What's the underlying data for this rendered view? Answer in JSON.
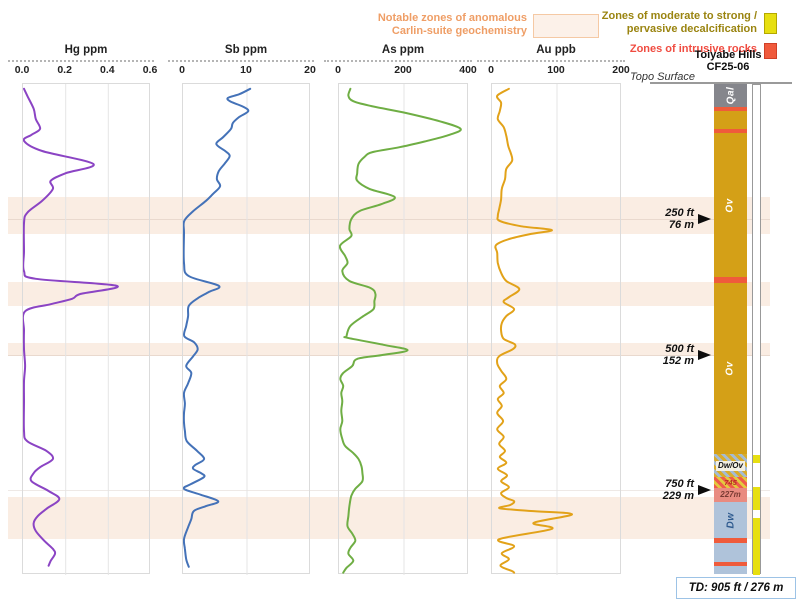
{
  "legend": {
    "anomalous": {
      "line1": "Notable zones of anomalous",
      "line2": "Carlin-suite geochemistry",
      "text_color": "#EF9E66",
      "swatch_fill": "#FCF1E9"
    },
    "decal": {
      "line1": "Zones of moderate to strong /",
      "line2": "pervasive decalcification",
      "text_color": "#9A8410",
      "swatch_fill": "#E7DF10"
    },
    "intrusive": {
      "label": "Zones of intrusive rocks",
      "text_color": "#F04C41",
      "swatch_fill": "#F05A3C"
    }
  },
  "drillhole": {
    "title_line1": "Toiyabe Hills",
    "title_line2": "CF25-06",
    "topo_label": "Topo Surface",
    "td_label": "TD: 905 ft / 276 m",
    "total_depth_ft": 905,
    "depth_markers": [
      {
        "ft_label": "250 ft",
        "m_label": "76 m",
        "depth_ft": 250
      },
      {
        "ft_label": "500 ft",
        "m_label": "152 m",
        "depth_ft": 500
      },
      {
        "ft_label": "750 ft",
        "m_label": "229 m",
        "depth_ft": 750
      }
    ],
    "column_layers": [
      {
        "from_ft": 0,
        "to_ft": 42,
        "color": "#85868C",
        "unit": "Qal",
        "label": "Qal",
        "label_class": "rot-light"
      },
      {
        "from_ft": 42,
        "to_ft": 50,
        "color": "#EF5B3B",
        "unit": "intrusive"
      },
      {
        "from_ft": 50,
        "to_ft": 83,
        "color": "#D4A017",
        "unit": "Ov"
      },
      {
        "from_ft": 83,
        "to_ft": 91,
        "color": "#EF5B3B",
        "unit": "intrusive"
      },
      {
        "from_ft": 91,
        "to_ft": 357,
        "color": "#D4A017",
        "unit": "Ov",
        "label": "Ov",
        "label_class": "rot-light"
      },
      {
        "from_ft": 357,
        "to_ft": 368,
        "color": "#EF5B3B",
        "unit": "intrusive"
      },
      {
        "from_ft": 368,
        "to_ft": 684,
        "color": "#D4A017",
        "unit": "Ov",
        "label": "Ov",
        "label_class": "rot-light"
      },
      {
        "from_ft": 684,
        "to_ft": 726,
        "pattern": "hatch-gold-blue",
        "unit": "Dw/Ov",
        "label": "Dw/Ov",
        "label_class": "flat-dark"
      },
      {
        "from_ft": 726,
        "to_ft": 746,
        "pattern": "hatch-red-gold",
        "unit": "intrusive",
        "label": "745",
        "label_class": "flat-red"
      },
      {
        "from_ft": 746,
        "to_ft": 772,
        "color": "#E98B80",
        "unit": "intrusive",
        "label": "227m",
        "label_class": "flat-maroon"
      },
      {
        "from_ft": 772,
        "to_ft": 839,
        "color": "#AFC3DA",
        "unit": "Dw",
        "label": "Dw",
        "label_class": "rot-blue"
      },
      {
        "from_ft": 839,
        "to_ft": 848,
        "color": "#EF5B3B",
        "unit": "intrusive"
      },
      {
        "from_ft": 848,
        "to_ft": 883,
        "color": "#AFC3DA",
        "unit": "Dw"
      },
      {
        "from_ft": 883,
        "to_ft": 890,
        "color": "#EF5B3B",
        "unit": "intrusive"
      },
      {
        "from_ft": 890,
        "to_ft": 905,
        "color": "#AFC3DA",
        "unit": "Dw"
      }
    ],
    "decal_zones_ft": [
      [
        684,
        698
      ],
      [
        743,
        785
      ],
      [
        800,
        905
      ]
    ],
    "track_yellow": "#E7DF10"
  },
  "anomalous_zones_ft": [
    [
      209,
      277
    ],
    [
      366,
      410
    ],
    [
      478,
      502
    ],
    [
      763,
      841
    ]
  ],
  "band_color": "#FAEDE3",
  "depth_gridlines_ft": [
    250,
    500,
    750
  ],
  "chart_data": [
    {
      "id": "hg",
      "type": "line",
      "title": "Hg ppm",
      "orientation": "depth-profile",
      "xlim": [
        0,
        0.6
      ],
      "depth_range_ft": [
        0,
        905
      ],
      "grid": true,
      "color": "#8B44C4",
      "x_ticks": [
        {
          "v": 0,
          "label": "0.0"
        },
        {
          "v": 0.2,
          "label": "0.2"
        },
        {
          "v": 0.4,
          "label": "0.4"
        },
        {
          "v": 0.6,
          "label": "0.6"
        }
      ],
      "points": [
        [
          7,
          0
        ],
        [
          20,
          0.02
        ],
        [
          44,
          0.05
        ],
        [
          63,
          0.06
        ],
        [
          81,
          0.08
        ],
        [
          92,
          0.04
        ],
        [
          103,
          0
        ],
        [
          122,
          0.09
        ],
        [
          146,
          0.33
        ],
        [
          163,
          0.2
        ],
        [
          177,
          0.13
        ],
        [
          192,
          0.14
        ],
        [
          214,
          0.09
        ],
        [
          236,
          0.02
        ],
        [
          255,
          0
        ],
        [
          307,
          0
        ],
        [
          344,
          0
        ],
        [
          358,
          0.06
        ],
        [
          371,
          0.44
        ],
        [
          386,
          0.27
        ],
        [
          395,
          0.23
        ],
        [
          405,
          0.13
        ],
        [
          418,
          0.01
        ],
        [
          454,
          0
        ],
        [
          488,
          0
        ],
        [
          519,
          0.01
        ],
        [
          547,
          0
        ],
        [
          584,
          0
        ],
        [
          639,
          0
        ],
        [
          658,
          0.02
        ],
        [
          676,
          0.11
        ],
        [
          691,
          0.14
        ],
        [
          706,
          0.08
        ],
        [
          717,
          0.05
        ],
        [
          732,
          0.04
        ],
        [
          750,
          0.12
        ],
        [
          765,
          0.17
        ],
        [
          783,
          0.11
        ],
        [
          796,
          0.07
        ],
        [
          809,
          0.05
        ],
        [
          824,
          0.06
        ],
        [
          842,
          0.1
        ],
        [
          857,
          0.14
        ],
        [
          866,
          0.15
        ],
        [
          879,
          0.13
        ],
        [
          888,
          0.12
        ]
      ]
    },
    {
      "id": "sb",
      "type": "line",
      "title": "Sb ppm",
      "orientation": "depth-profile",
      "xlim": [
        0,
        20
      ],
      "depth_range_ft": [
        0,
        905
      ],
      "grid": true,
      "color": "#4472B8",
      "x_ticks": [
        {
          "v": 0,
          "label": "0"
        },
        {
          "v": 10,
          "label": "10"
        },
        {
          "v": 20,
          "label": "20"
        }
      ],
      "points": [
        [
          7,
          10.5
        ],
        [
          17,
          8.8
        ],
        [
          24,
          7
        ],
        [
          31,
          7.5
        ],
        [
          39,
          9.2
        ],
        [
          48,
          10.2
        ],
        [
          59,
          8.8
        ],
        [
          70,
          7.8
        ],
        [
          81,
          7.5
        ],
        [
          96,
          6.3
        ],
        [
          109,
          5.2
        ],
        [
          122,
          6.6
        ],
        [
          131,
          7.3
        ],
        [
          144,
          6.6
        ],
        [
          159,
          5.6
        ],
        [
          174,
          5.3
        ],
        [
          187,
          5.8
        ],
        [
          201,
          4.7
        ],
        [
          214,
          3.6
        ],
        [
          233,
          1.6
        ],
        [
          251,
          0.2
        ],
        [
          273,
          0
        ],
        [
          329,
          0
        ],
        [
          353,
          0.9
        ],
        [
          371,
          5.6
        ],
        [
          382,
          4.1
        ],
        [
          394,
          2.3
        ],
        [
          408,
          0.9
        ],
        [
          427,
          0.8
        ],
        [
          445,
          0.5
        ],
        [
          464,
          0.2
        ],
        [
          475,
          1.7
        ],
        [
          488,
          2.3
        ],
        [
          501,
          1.6
        ],
        [
          519,
          0.5
        ],
        [
          532,
          1.3
        ],
        [
          551,
          0.8
        ],
        [
          569,
          0
        ],
        [
          589,
          0.3
        ],
        [
          606,
          0
        ],
        [
          624,
          0
        ],
        [
          639,
          0.3
        ],
        [
          658,
          0.6
        ],
        [
          676,
          2.2
        ],
        [
          691,
          3.3
        ],
        [
          702,
          1.9
        ],
        [
          709,
          1.6
        ],
        [
          717,
          2.8
        ],
        [
          724,
          3.3
        ],
        [
          737,
          1.3
        ],
        [
          746,
          0
        ],
        [
          757,
          2.8
        ],
        [
          769,
          5.5
        ],
        [
          778,
          3.6
        ],
        [
          787,
          1.7
        ],
        [
          802,
          1.3
        ],
        [
          817,
          0.8
        ],
        [
          839,
          0
        ],
        [
          857,
          0.3
        ],
        [
          876,
          0.5
        ],
        [
          890,
          0.9
        ]
      ]
    },
    {
      "id": "as",
      "type": "line",
      "title": "As ppm",
      "orientation": "depth-profile",
      "xlim": [
        0,
        400
      ],
      "depth_range_ft": [
        0,
        905
      ],
      "grid": true,
      "color": "#6FAE44",
      "x_ticks": [
        {
          "v": 0,
          "label": "0"
        },
        {
          "v": 200,
          "label": "200"
        },
        {
          "v": 400,
          "label": "400"
        }
      ],
      "points": [
        [
          7,
          35
        ],
        [
          20,
          29
        ],
        [
          30,
          44
        ],
        [
          39,
          100
        ],
        [
          52,
          208
        ],
        [
          67,
          310
        ],
        [
          81,
          374
        ],
        [
          92,
          340
        ],
        [
          103,
          272
        ],
        [
          115,
          186
        ],
        [
          124,
          103
        ],
        [
          133,
          78
        ],
        [
          146,
          60
        ],
        [
          163,
          56
        ],
        [
          177,
          56
        ],
        [
          192,
          94
        ],
        [
          207,
          171
        ],
        [
          220,
          131
        ],
        [
          233,
          63
        ],
        [
          248,
          38
        ],
        [
          266,
          32
        ],
        [
          279,
          38
        ],
        [
          297,
          1
        ],
        [
          316,
          19
        ],
        [
          329,
          26
        ],
        [
          344,
          10
        ],
        [
          362,
          32
        ],
        [
          375,
          97
        ],
        [
          386,
          112
        ],
        [
          399,
          109
        ],
        [
          414,
          106
        ],
        [
          427,
          75
        ],
        [
          445,
          35
        ],
        [
          464,
          23
        ],
        [
          467,
          26
        ],
        [
          480,
          137
        ],
        [
          490,
          211
        ],
        [
          499,
          131
        ],
        [
          506,
          56
        ],
        [
          519,
          41
        ],
        [
          532,
          13
        ],
        [
          543,
          4
        ],
        [
          556,
          13
        ],
        [
          569,
          7
        ],
        [
          584,
          10
        ],
        [
          602,
          7
        ],
        [
          621,
          10
        ],
        [
          636,
          4
        ],
        [
          654,
          10
        ],
        [
          667,
          19
        ],
        [
          680,
          44
        ],
        [
          691,
          60
        ],
        [
          704,
          69
        ],
        [
          717,
          72
        ],
        [
          732,
          72
        ],
        [
          746,
          50
        ],
        [
          759,
          38
        ],
        [
          778,
          32
        ],
        [
          796,
          29
        ],
        [
          815,
          26
        ],
        [
          829,
          41
        ],
        [
          842,
          50
        ],
        [
          855,
          35
        ],
        [
          866,
          29
        ],
        [
          879,
          44
        ],
        [
          892,
          23
        ],
        [
          901,
          13
        ]
      ]
    },
    {
      "id": "au",
      "type": "line",
      "title": "Au ppb",
      "orientation": "depth-profile",
      "xlim": [
        0,
        200
      ],
      "depth_range_ft": [
        0,
        905
      ],
      "grid": true,
      "color": "#E2A219",
      "x_ticks": [
        {
          "v": 0,
          "label": "0"
        },
        {
          "v": 100,
          "label": "100"
        },
        {
          "v": 200,
          "label": "200"
        }
      ],
      "points": [
        [
          7,
          26
        ],
        [
          20,
          8
        ],
        [
          33,
          14
        ],
        [
          48,
          12
        ],
        [
          63,
          9
        ],
        [
          78,
          18
        ],
        [
          94,
          22
        ],
        [
          113,
          25
        ],
        [
          126,
          29
        ],
        [
          140,
          31
        ],
        [
          155,
          22
        ],
        [
          174,
          20
        ],
        [
          192,
          15
        ],
        [
          211,
          14
        ],
        [
          229,
          11
        ],
        [
          242,
          9
        ],
        [
          251,
          12
        ],
        [
          261,
          45
        ],
        [
          268,
          92
        ],
        [
          275,
          60
        ],
        [
          285,
          25
        ],
        [
          296,
          6
        ],
        [
          310,
          8
        ],
        [
          329,
          9
        ],
        [
          347,
          14
        ],
        [
          362,
          22
        ],
        [
          377,
          42
        ],
        [
          392,
          26
        ],
        [
          401,
          18
        ],
        [
          414,
          34
        ],
        [
          427,
          22
        ],
        [
          440,
          15
        ],
        [
          454,
          14
        ],
        [
          469,
          18
        ],
        [
          479,
          35
        ],
        [
          488,
          32
        ],
        [
          501,
          11
        ],
        [
          514,
          8
        ],
        [
          528,
          14
        ],
        [
          543,
          22
        ],
        [
          556,
          12
        ],
        [
          569,
          18
        ],
        [
          580,
          9
        ],
        [
          593,
          15
        ],
        [
          606,
          8
        ],
        [
          621,
          17
        ],
        [
          636,
          8
        ],
        [
          650,
          18
        ],
        [
          663,
          11
        ],
        [
          676,
          20
        ],
        [
          687,
          12
        ],
        [
          698,
          22
        ],
        [
          709,
          9
        ],
        [
          721,
          23
        ],
        [
          732,
          14
        ],
        [
          743,
          26
        ],
        [
          754,
          14
        ],
        [
          763,
          22
        ],
        [
          769,
          34
        ],
        [
          776,
          28
        ],
        [
          782,
          12
        ],
        [
          787,
          60
        ],
        [
          793,
          123
        ],
        [
          809,
          64
        ],
        [
          820,
          92
        ],
        [
          839,
          11
        ],
        [
          852,
          34
        ],
        [
          865,
          15
        ],
        [
          876,
          26
        ],
        [
          888,
          13
        ],
        [
          898,
          31
        ],
        [
          901,
          34
        ]
      ]
    }
  ]
}
